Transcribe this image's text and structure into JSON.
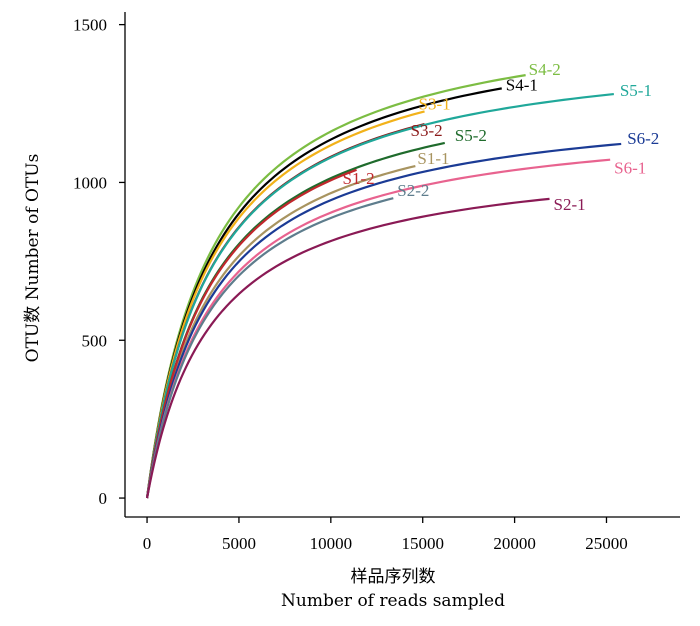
{
  "chart_data": {
    "type": "line",
    "title": "",
    "xlabel": "样品序列数",
    "xlabel_en": "Number of reads sampled",
    "ylabel": "OTU数 Number of OTUs",
    "xlim": [
      -1200,
      29000
    ],
    "ylim": [
      -60,
      1540
    ],
    "x_ticks": [
      0,
      5000,
      10000,
      15000,
      20000,
      25000
    ],
    "y_ticks": [
      0,
      500,
      1000,
      1500
    ],
    "grid": false,
    "legend": "inline-labels",
    "series": [
      {
        "name": "S4-2",
        "color": "#7cbd43",
        "x_max": 20600,
        "y_max": 1340
      },
      {
        "name": "S4-1",
        "color": "#000000",
        "x_max": 19300,
        "y_max": 1298
      },
      {
        "name": "S3-1",
        "color": "#f2b21a",
        "x_max": 15100,
        "y_max": 1225
      },
      {
        "name": "S3-2",
        "color": "#8b1a1a",
        "x_max": 15100,
        "y_max": 1185
      },
      {
        "name": "S5-1",
        "color": "#20a89a",
        "x_max": 25400,
        "y_max": 1280
      },
      {
        "name": "S5-2",
        "color": "#1f6b2c",
        "x_max": 16200,
        "y_max": 1125
      },
      {
        "name": "S1-1",
        "color": "#a89460",
        "x_max": 14600,
        "y_max": 1052
      },
      {
        "name": "S1-2",
        "color": "#c0282d",
        "x_max": 11400,
        "y_max": 1040
      },
      {
        "name": "S6-2",
        "color": "#1b3b95",
        "x_max": 25800,
        "y_max": 1122
      },
      {
        "name": "S6-1",
        "color": "#e8638f",
        "x_max": 25200,
        "y_max": 1072
      },
      {
        "name": "S2-2",
        "color": "#5e7d8d",
        "x_max": 13400,
        "y_max": 950
      },
      {
        "name": "S2-1",
        "color": "#8a1a55",
        "x_max": 21900,
        "y_max": 948
      }
    ]
  },
  "label_offsets": {
    "S4-2": [
      3,
      -6
    ],
    "S4-1": [
      4,
      -4
    ],
    "S3-1": [
      -6,
      -8
    ],
    "S3-2": [
      -14,
      6
    ],
    "S5-1": [
      6,
      -4
    ],
    "S5-2": [
      10,
      -8
    ],
    "S1-1": [
      2,
      -8
    ],
    "S1-2": [
      -14,
      8
    ],
    "S6-2": [
      6,
      -6
    ],
    "S6-1": [
      4,
      8
    ],
    "S2-2": [
      4,
      -8
    ],
    "S2-1": [
      4,
      5
    ]
  }
}
